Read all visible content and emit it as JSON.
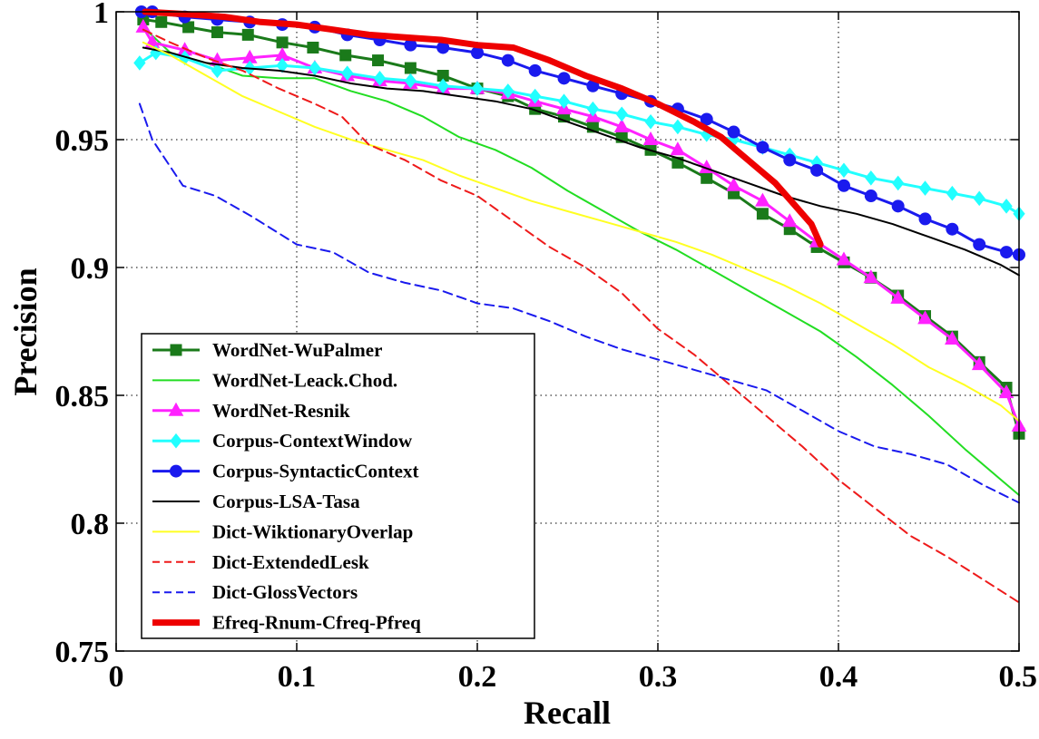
{
  "chart_data": {
    "type": "line",
    "title": "",
    "xlabel": "Recall",
    "ylabel": "Precision",
    "xlim": [
      0,
      0.5
    ],
    "ylim": [
      0.75,
      1
    ],
    "xticks": [
      0,
      0.1,
      0.2,
      0.3,
      0.4,
      0.5
    ],
    "xtick_labels": [
      "0",
      "0.1",
      "0.2",
      "0.3",
      "0.4",
      "0.5"
    ],
    "yticks": [
      0.75,
      0.8,
      0.85,
      0.9,
      0.95,
      1
    ],
    "ytick_labels": [
      "0.75",
      "0.8",
      "0.85",
      "0.9",
      "0.95",
      "1"
    ],
    "grid": true,
    "legend_position": "bottom-left",
    "series": [
      {
        "name": "WordNet-WuPalmer",
        "color": "#1a7a1a",
        "width": 3,
        "dash": "solid",
        "marker": "square",
        "x": [
          0.015,
          0.025,
          0.04,
          0.056,
          0.073,
          0.092,
          0.109,
          0.127,
          0.145,
          0.163,
          0.181,
          0.2,
          0.217,
          0.232,
          0.248,
          0.264,
          0.28,
          0.296,
          0.311,
          0.327,
          0.342,
          0.358,
          0.373,
          0.388,
          0.403,
          0.418,
          0.433,
          0.448,
          0.463,
          0.478,
          0.493,
          0.5
        ],
        "y": [
          0.997,
          0.996,
          0.994,
          0.992,
          0.991,
          0.988,
          0.986,
          0.983,
          0.981,
          0.978,
          0.975,
          0.97,
          0.967,
          0.962,
          0.959,
          0.955,
          0.951,
          0.946,
          0.941,
          0.935,
          0.929,
          0.921,
          0.915,
          0.908,
          0.902,
          0.896,
          0.889,
          0.881,
          0.873,
          0.863,
          0.853,
          0.835
        ]
      },
      {
        "name": "WordNet-Leack.Chod.",
        "color": "#22dd22",
        "width": 2,
        "dash": "solid",
        "marker": "none",
        "x": [
          0.015,
          0.03,
          0.05,
          0.07,
          0.09,
          0.11,
          0.13,
          0.15,
          0.17,
          0.19,
          0.21,
          0.23,
          0.25,
          0.27,
          0.29,
          0.31,
          0.33,
          0.35,
          0.37,
          0.39,
          0.41,
          0.43,
          0.45,
          0.47,
          0.49,
          0.5
        ],
        "y": [
          0.994,
          0.984,
          0.98,
          0.975,
          0.974,
          0.974,
          0.969,
          0.965,
          0.959,
          0.951,
          0.946,
          0.939,
          0.93,
          0.922,
          0.914,
          0.907,
          0.899,
          0.891,
          0.883,
          0.875,
          0.865,
          0.854,
          0.842,
          0.829,
          0.817,
          0.811
        ]
      },
      {
        "name": "WordNet-Resnik",
        "color": "#ff22ff",
        "width": 3,
        "dash": "solid",
        "marker": "triangle",
        "x": [
          0.015,
          0.02,
          0.038,
          0.056,
          0.074,
          0.092,
          0.11,
          0.128,
          0.146,
          0.163,
          0.181,
          0.2,
          0.217,
          0.232,
          0.248,
          0.264,
          0.28,
          0.296,
          0.311,
          0.327,
          0.342,
          0.358,
          0.373,
          0.388,
          0.403,
          0.418,
          0.433,
          0.448,
          0.463,
          0.478,
          0.493,
          0.5
        ],
        "y": [
          0.994,
          0.988,
          0.985,
          0.981,
          0.982,
          0.983,
          0.978,
          0.975,
          0.973,
          0.972,
          0.97,
          0.97,
          0.968,
          0.965,
          0.962,
          0.959,
          0.955,
          0.95,
          0.946,
          0.939,
          0.932,
          0.926,
          0.918,
          0.91,
          0.903,
          0.896,
          0.888,
          0.88,
          0.872,
          0.862,
          0.851,
          0.838
        ]
      },
      {
        "name": "Corpus-ContextWindow",
        "color": "#22ffff",
        "width": 3,
        "dash": "solid",
        "marker": "diamond",
        "x": [
          0.013,
          0.022,
          0.038,
          0.056,
          0.074,
          0.092,
          0.11,
          0.128,
          0.146,
          0.163,
          0.181,
          0.2,
          0.217,
          0.232,
          0.248,
          0.264,
          0.28,
          0.296,
          0.311,
          0.327,
          0.342,
          0.358,
          0.373,
          0.388,
          0.403,
          0.418,
          0.433,
          0.448,
          0.463,
          0.478,
          0.493,
          0.5
        ],
        "y": [
          0.98,
          0.984,
          0.982,
          0.977,
          0.978,
          0.979,
          0.978,
          0.976,
          0.974,
          0.973,
          0.971,
          0.97,
          0.969,
          0.967,
          0.965,
          0.962,
          0.96,
          0.957,
          0.955,
          0.952,
          0.95,
          0.947,
          0.944,
          0.941,
          0.938,
          0.935,
          0.933,
          0.931,
          0.929,
          0.927,
          0.924,
          0.921
        ]
      },
      {
        "name": "Corpus-SyntacticContext",
        "color": "#1a1aee",
        "width": 3,
        "dash": "solid",
        "marker": "circle",
        "x": [
          0.014,
          0.02,
          0.038,
          0.056,
          0.074,
          0.092,
          0.11,
          0.128,
          0.146,
          0.163,
          0.181,
          0.2,
          0.217,
          0.232,
          0.248,
          0.264,
          0.28,
          0.296,
          0.311,
          0.327,
          0.342,
          0.358,
          0.373,
          0.388,
          0.403,
          0.418,
          0.433,
          0.448,
          0.463,
          0.478,
          0.493,
          0.5
        ],
        "y": [
          1.0,
          1.0,
          0.998,
          0.997,
          0.996,
          0.995,
          0.994,
          0.991,
          0.989,
          0.987,
          0.986,
          0.984,
          0.981,
          0.977,
          0.974,
          0.971,
          0.968,
          0.965,
          0.962,
          0.958,
          0.953,
          0.947,
          0.942,
          0.938,
          0.932,
          0.928,
          0.924,
          0.919,
          0.915,
          0.909,
          0.906,
          0.905
        ]
      },
      {
        "name": "Corpus-LSA-Tasa",
        "color": "#000000",
        "width": 2,
        "dash": "solid",
        "marker": "none",
        "x": [
          0.015,
          0.03,
          0.05,
          0.07,
          0.09,
          0.11,
          0.13,
          0.15,
          0.17,
          0.19,
          0.21,
          0.23,
          0.25,
          0.27,
          0.29,
          0.31,
          0.33,
          0.35,
          0.37,
          0.39,
          0.41,
          0.43,
          0.45,
          0.47,
          0.49,
          0.5
        ],
        "y": [
          0.986,
          0.984,
          0.98,
          0.978,
          0.977,
          0.975,
          0.972,
          0.97,
          0.969,
          0.967,
          0.965,
          0.962,
          0.957,
          0.952,
          0.947,
          0.943,
          0.938,
          0.933,
          0.928,
          0.924,
          0.921,
          0.917,
          0.912,
          0.907,
          0.901,
          0.897
        ]
      },
      {
        "name": "Dict-WiktionaryOverlap",
        "color": "#ffff22",
        "width": 2,
        "dash": "solid",
        "marker": "none",
        "x": [
          0.015,
          0.03,
          0.05,
          0.07,
          0.09,
          0.11,
          0.13,
          0.15,
          0.17,
          0.19,
          0.21,
          0.23,
          0.25,
          0.27,
          0.29,
          0.31,
          0.33,
          0.35,
          0.37,
          0.39,
          0.41,
          0.43,
          0.45,
          0.47,
          0.49,
          0.5
        ],
        "y": [
          0.988,
          0.983,
          0.975,
          0.967,
          0.961,
          0.955,
          0.95,
          0.946,
          0.942,
          0.936,
          0.931,
          0.926,
          0.922,
          0.918,
          0.914,
          0.91,
          0.905,
          0.899,
          0.893,
          0.886,
          0.878,
          0.87,
          0.861,
          0.854,
          0.846,
          0.84
        ]
      },
      {
        "name": "Dict-ExtendedLesk",
        "color": "#ee1a1a",
        "width": 2,
        "dash": "dashed",
        "marker": "none",
        "x": [
          0.015,
          0.03,
          0.05,
          0.07,
          0.09,
          0.11,
          0.125,
          0.14,
          0.16,
          0.18,
          0.2,
          0.22,
          0.24,
          0.26,
          0.28,
          0.3,
          0.32,
          0.34,
          0.36,
          0.38,
          0.4,
          0.42,
          0.44,
          0.46,
          0.48,
          0.5
        ],
        "y": [
          0.993,
          0.988,
          0.982,
          0.977,
          0.97,
          0.964,
          0.959,
          0.948,
          0.942,
          0.934,
          0.928,
          0.918,
          0.908,
          0.9,
          0.89,
          0.876,
          0.866,
          0.854,
          0.842,
          0.83,
          0.817,
          0.806,
          0.795,
          0.787,
          0.778,
          0.769
        ]
      },
      {
        "name": "Dict-GlossVectors",
        "color": "#1a1aee",
        "width": 2,
        "dash": "dashed",
        "marker": "none",
        "x": [
          0.013,
          0.02,
          0.037,
          0.055,
          0.075,
          0.1,
          0.12,
          0.14,
          0.16,
          0.18,
          0.2,
          0.22,
          0.24,
          0.26,
          0.28,
          0.3,
          0.32,
          0.34,
          0.36,
          0.38,
          0.4,
          0.42,
          0.44,
          0.46,
          0.48,
          0.5
        ],
        "y": [
          0.964,
          0.95,
          0.932,
          0.928,
          0.92,
          0.909,
          0.906,
          0.898,
          0.894,
          0.891,
          0.886,
          0.884,
          0.879,
          0.873,
          0.868,
          0.864,
          0.86,
          0.856,
          0.852,
          0.844,
          0.836,
          0.83,
          0.827,
          0.823,
          0.815,
          0.808
        ]
      },
      {
        "name": "Efreq-Rnum-Cfreq-Pfreq",
        "color": "#ee0000",
        "width": 7,
        "dash": "solid",
        "marker": "none",
        "x": [
          0.016,
          0.04,
          0.06,
          0.08,
          0.1,
          0.12,
          0.14,
          0.16,
          0.18,
          0.2,
          0.22,
          0.24,
          0.26,
          0.28,
          0.3,
          0.32,
          0.335,
          0.345,
          0.355,
          0.365,
          0.375,
          0.385,
          0.39
        ],
        "y": [
          1.0,
          0.999,
          0.998,
          0.996,
          0.995,
          0.993,
          0.991,
          0.99,
          0.989,
          0.987,
          0.986,
          0.981,
          0.975,
          0.97,
          0.964,
          0.957,
          0.951,
          0.945,
          0.939,
          0.933,
          0.925,
          0.917,
          0.909
        ]
      }
    ]
  }
}
